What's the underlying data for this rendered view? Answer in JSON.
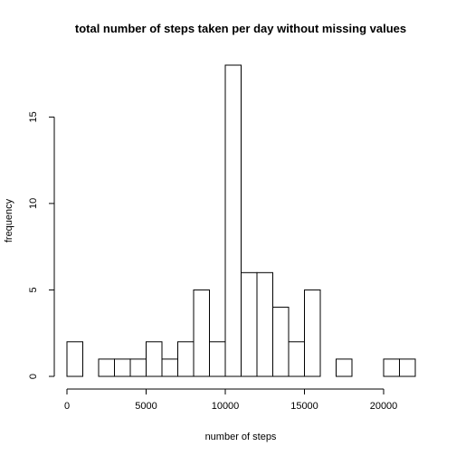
{
  "chart_data": {
    "type": "bar",
    "title": "total number of steps taken per day without missing values",
    "xlabel": "number of steps",
    "ylabel": "frequency",
    "bin_width": 1000,
    "bins": [
      {
        "x0": 0,
        "x1": 1000,
        "count": 2
      },
      {
        "x0": 1000,
        "x1": 2000,
        "count": 0
      },
      {
        "x0": 2000,
        "x1": 3000,
        "count": 1
      },
      {
        "x0": 3000,
        "x1": 4000,
        "count": 1
      },
      {
        "x0": 4000,
        "x1": 5000,
        "count": 1
      },
      {
        "x0": 5000,
        "x1": 6000,
        "count": 2
      },
      {
        "x0": 6000,
        "x1": 7000,
        "count": 1
      },
      {
        "x0": 7000,
        "x1": 8000,
        "count": 2
      },
      {
        "x0": 8000,
        "x1": 9000,
        "count": 5
      },
      {
        "x0": 9000,
        "x1": 10000,
        "count": 2
      },
      {
        "x0": 10000,
        "x1": 11000,
        "count": 18
      },
      {
        "x0": 11000,
        "x1": 12000,
        "count": 6
      },
      {
        "x0": 12000,
        "x1": 13000,
        "count": 6
      },
      {
        "x0": 13000,
        "x1": 14000,
        "count": 4
      },
      {
        "x0": 14000,
        "x1": 15000,
        "count": 2
      },
      {
        "x0": 15000,
        "x1": 16000,
        "count": 5
      },
      {
        "x0": 16000,
        "x1": 17000,
        "count": 0
      },
      {
        "x0": 17000,
        "x1": 18000,
        "count": 1
      },
      {
        "x0": 18000,
        "x1": 19000,
        "count": 0
      },
      {
        "x0": 19000,
        "x1": 20000,
        "count": 0
      },
      {
        "x0": 20000,
        "x1": 21000,
        "count": 1
      },
      {
        "x0": 21000,
        "x1": 22000,
        "count": 1
      }
    ],
    "xlim": [
      0,
      22000
    ],
    "ylim": [
      0,
      18
    ],
    "x_ticks": [
      0,
      5000,
      10000,
      15000,
      20000
    ],
    "y_ticks": [
      0,
      5,
      10,
      15
    ],
    "grid": false,
    "legend": "none"
  }
}
